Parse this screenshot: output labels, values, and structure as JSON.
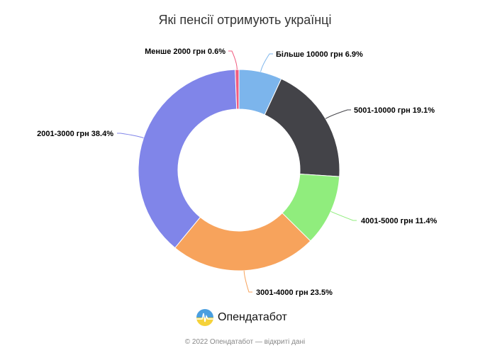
{
  "chart_data": {
    "type": "pie",
    "variant": "donut",
    "title": "Які пенсії отримують українці",
    "categories": [
      "Більше 10000 грн",
      "5001-10000 грн",
      "4001-5000 грн",
      "3001-4000 грн",
      "2001-3000 грн",
      "Менше 2000 грн"
    ],
    "values": [
      6.9,
      19.1,
      11.4,
      23.5,
      38.4,
      0.6
    ],
    "labels": [
      "Більше 10000 грн 6.9%",
      "5001-10000 грн 19.1%",
      "4001-5000 грн 11.4%",
      "3001-4000 грн 23.5%",
      "2001-3000 грн 38.4%",
      "Менше 2000 грн 0.6%"
    ],
    "colors": [
      "#7cb5ec",
      "#434348",
      "#90ed7d",
      "#f7a35c",
      "#8085e9",
      "#f15c80"
    ],
    "unit": "%"
  },
  "brand": {
    "name": "Опендатабот"
  },
  "footer": {
    "copyright": "© 2022 Опендатабот — відкриті дані"
  }
}
